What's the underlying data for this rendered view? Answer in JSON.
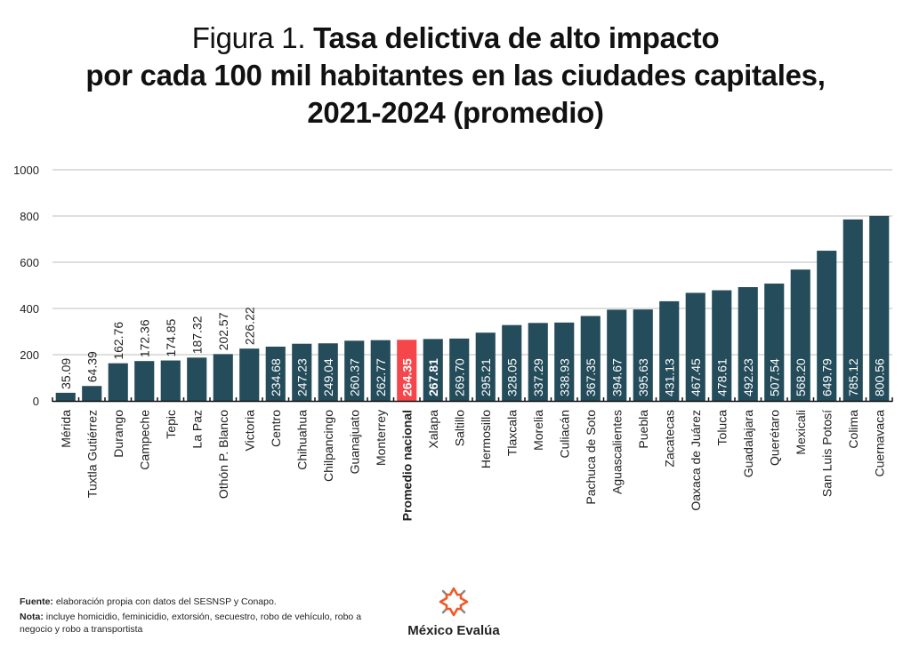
{
  "title": {
    "prefix": "Figura 1. ",
    "line1": "Tasa delictiva de alto impacto",
    "line2": "por cada 100 mil habitantes en las ciudades capitales,",
    "line3": "2021-2024 (promedio)"
  },
  "colors": {
    "bar": "#244c5a",
    "highlight": "#f5474b",
    "grid": "#bdbdbd",
    "label_outside": "#222222",
    "label_inside": "#ffffff",
    "logo_orange": "#f05a28",
    "logo_gray": "#8a8a8a"
  },
  "chart_data": {
    "type": "bar",
    "title": "Tasa delictiva de alto impacto por cada 100 mil habitantes en las ciudades capitales, 2021-2024 (promedio)",
    "xlabel": "",
    "ylabel": "",
    "ylim": [
      0,
      1000
    ],
    "yticks": [
      0,
      200,
      400,
      600,
      800,
      1000
    ],
    "grid": true,
    "legend": "none",
    "highlight_category": "Promedio nacional",
    "categories": [
      "Mérida",
      "Tuxtla Gutiérrez",
      "Durango",
      "Campeche",
      "Tepic",
      "La Paz",
      "Othón P. Blanco",
      "Victoria",
      "Centro",
      "Chihuahua",
      "Chilpancingo",
      "Guanajuato",
      "Monterrey",
      "Promedio nacional",
      "Xalapa",
      "Saltillo",
      "Hermosillo",
      "Tlaxcala",
      "Morelia",
      "Culiacán",
      "Pachuca de Soto",
      "Aguascalientes",
      "Puebla",
      "Zacatecas",
      "Oaxaca de Juárez",
      "Toluca",
      "Guadalajara",
      "Querétaro",
      "Mexicali",
      "San Luis Potosí",
      "Colima",
      "Cuernavaca"
    ],
    "values": [
      35.09,
      64.39,
      162.76,
      172.36,
      174.85,
      187.32,
      202.57,
      226.22,
      234.68,
      247.23,
      249.04,
      260.37,
      262.77,
      264.35,
      267.81,
      269.7,
      295.21,
      328.05,
      337.29,
      338.93,
      367.35,
      394.67,
      395.63,
      431.13,
      467.45,
      478.61,
      492.23,
      507.54,
      568.2,
      649.79,
      785.12,
      800.56
    ],
    "value_labels": [
      "35.09",
      "64.39",
      "162.76",
      "172.36",
      "174.85",
      "187.32",
      "202.57",
      "226.22",
      "234.68",
      "247.23",
      "249.04",
      "260.37",
      "262.77",
      "264.35",
      "267.81",
      "269.70",
      "295.21",
      "328.05",
      "337.29",
      "338.93",
      "367.35",
      "394.67",
      "395.63",
      "431.13",
      "467.45",
      "478.61",
      "492.23",
      "507.54",
      "568.20",
      "649.79",
      "785.12",
      "800.56"
    ]
  },
  "footer": {
    "source_label": "Fuente:",
    "source_text": " elaboración propia con datos del SESNSP y Conapo.",
    "note_label": "Nota:",
    "note_text": " incluye homicidio, feminicidio, extorsión, secuestro, robo de vehículo, robo a negocio y robo a transportista"
  },
  "logo": {
    "name": "México Evalúa",
    "icon": "star-burst-icon"
  }
}
